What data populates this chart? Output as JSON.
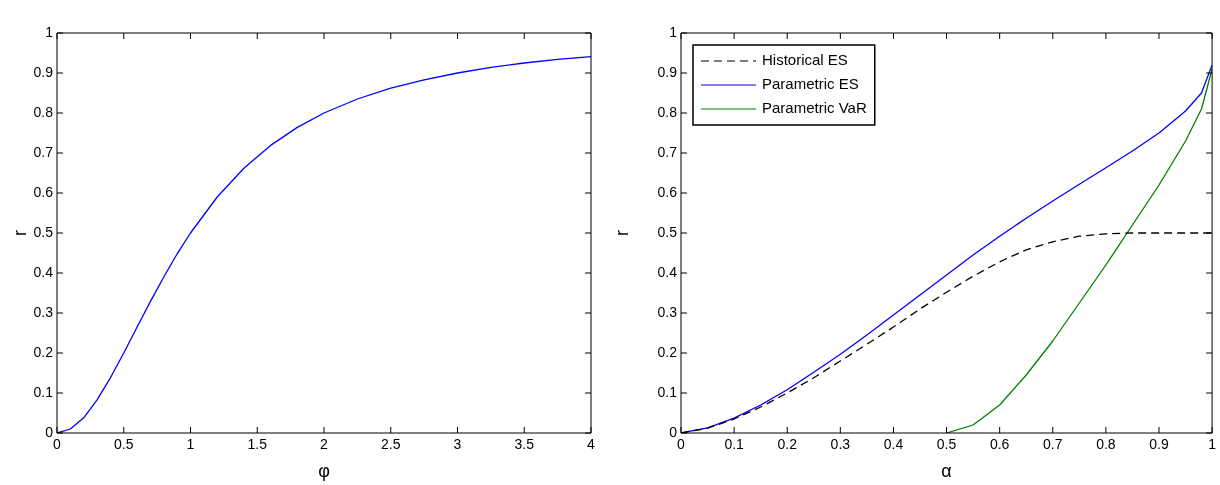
{
  "chart_data": [
    {
      "type": "line",
      "xlabel": "φ",
      "ylabel": "r",
      "xlim": [
        0,
        4
      ],
      "ylim": [
        0,
        1
      ],
      "xticks": [
        0,
        0.5,
        1,
        1.5,
        2,
        2.5,
        3,
        3.5,
        4
      ],
      "yticks": [
        0,
        0.1,
        0.2,
        0.3,
        0.4,
        0.5,
        0.6,
        0.7,
        0.8,
        0.9,
        1
      ],
      "marker": "none",
      "legend": false,
      "series": [
        {
          "color": "#0000ff",
          "x": [
            0,
            0.1,
            0.2,
            0.3,
            0.4,
            0.5,
            0.6,
            0.7,
            0.8,
            0.9,
            1,
            1.2,
            1.4,
            1.6,
            1.8,
            2,
            2.25,
            2.5,
            2.75,
            3,
            3.25,
            3.5,
            3.75,
            4
          ],
          "values": [
            0,
            0.01,
            0.038,
            0.083,
            0.138,
            0.2,
            0.265,
            0.329,
            0.39,
            0.448,
            0.5,
            0.59,
            0.662,
            0.719,
            0.764,
            0.8,
            0.835,
            0.862,
            0.883,
            0.9,
            0.914,
            0.925,
            0.934,
            0.941
          ]
        }
      ]
    },
    {
      "type": "line",
      "xlabel": "α",
      "ylabel": "r",
      "xlim": [
        0,
        1
      ],
      "ylim": [
        0,
        1
      ],
      "xticks": [
        0,
        0.1,
        0.2,
        0.3,
        0.4,
        0.5,
        0.6,
        0.7,
        0.8,
        0.9,
        1
      ],
      "yticks": [
        0,
        0.1,
        0.2,
        0.3,
        0.4,
        0.5,
        0.6,
        0.7,
        0.8,
        0.9,
        1
      ],
      "marker": "none",
      "legend": "top left",
      "series": [
        {
          "name": "Historical ES",
          "color": "#000000",
          "line_style": "dashed",
          "x": [
            0,
            0.05,
            0.1,
            0.15,
            0.2,
            0.25,
            0.3,
            0.35,
            0.4,
            0.45,
            0.5,
            0.55,
            0.6,
            0.65,
            0.7,
            0.75,
            0.8,
            0.85,
            0.9,
            0.95,
            1
          ],
          "values": [
            0,
            0.012,
            0.035,
            0.065,
            0.1,
            0.138,
            0.18,
            0.222,
            0.265,
            0.31,
            0.352,
            0.392,
            0.428,
            0.458,
            0.478,
            0.492,
            0.498,
            0.5,
            0.5,
            0.5,
            0.5
          ]
        },
        {
          "name": "Parametric ES",
          "color": "#0000ff",
          "line_style": "solid",
          "x": [
            0,
            0.05,
            0.1,
            0.15,
            0.2,
            0.25,
            0.3,
            0.35,
            0.4,
            0.45,
            0.5,
            0.55,
            0.6,
            0.65,
            0.7,
            0.75,
            0.8,
            0.85,
            0.9,
            0.95,
            0.98,
            1
          ],
          "values": [
            0,
            0.013,
            0.037,
            0.07,
            0.108,
            0.152,
            0.197,
            0.245,
            0.295,
            0.345,
            0.395,
            0.445,
            0.492,
            0.537,
            0.58,
            0.622,
            0.663,
            0.705,
            0.75,
            0.805,
            0.85,
            0.92
          ]
        },
        {
          "name": "Parametric VaR",
          "color": "#008000",
          "line_style": "solid",
          "x": [
            0.5,
            0.55,
            0.6,
            0.65,
            0.7,
            0.75,
            0.8,
            0.85,
            0.9,
            0.95,
            0.98,
            1
          ],
          "values": [
            0,
            0.02,
            0.07,
            0.145,
            0.23,
            0.325,
            0.42,
            0.52,
            0.62,
            0.73,
            0.81,
            0.91
          ]
        }
      ]
    }
  ]
}
